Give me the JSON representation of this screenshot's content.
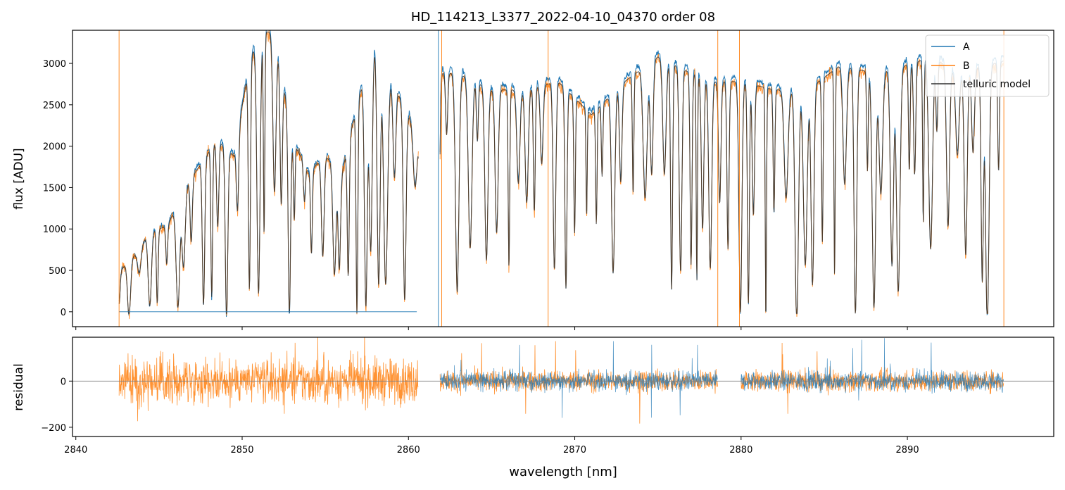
{
  "chart_data": {
    "type": "line",
    "title": "HD_114213_L3377_2022-04-10_04370  order 08",
    "xlabel": "wavelength [nm]",
    "xlim": [
      2839.8,
      2898.8
    ],
    "xticks": [
      2840,
      2850,
      2860,
      2870,
      2880,
      2890
    ],
    "legend_position": "top-right",
    "colors": {
      "A": "#1f77b4",
      "B": "#ff7f0e",
      "model": "#303030",
      "zero_line": "#808080"
    },
    "top_panel": {
      "ylabel": "flux [ADU]",
      "ylim": [
        -180,
        3400
      ],
      "yticks": [
        0,
        500,
        1000,
        1500,
        2000,
        2500,
        3000
      ],
      "series": [
        {
          "name": "A",
          "color": "#1f77b4",
          "segments": [
            [
              2842.6,
              2860.5
            ],
            [
              2861.9,
              2895.8
            ]
          ],
          "note_visible_edges": "vertical spikes at ~2861.8 and ~2895.8"
        },
        {
          "name": "B",
          "color": "#ff7f0e",
          "segments": [
            [
              2842.6,
              2860.6
            ],
            [
              2861.9,
              2895.8
            ]
          ]
        },
        {
          "name": "telluric model",
          "color": "#303030",
          "segments": [
            [
              2842.6,
              2860.6
            ],
            [
              2861.9,
              2895.8
            ]
          ]
        }
      ],
      "profile_knots": {
        "x": [
          2842.6,
          2843.5,
          2844.5,
          2845.5,
          2846.5,
          2847.5,
          2848.5,
          2849.5,
          2850.5,
          2851.2,
          2852,
          2853,
          2854,
          2855,
          2856,
          2857,
          2858,
          2859,
          2860.5,
          2861.9,
          2863,
          2865,
          2867,
          2869,
          2871,
          2873,
          2875,
          2877,
          2878.5,
          2880,
          2882,
          2884,
          2886,
          2888,
          2890,
          2891.5,
          2893,
          2895.8
        ],
        "y": [
          500,
          700,
          1000,
          1050,
          1500,
          1800,
          2100,
          1900,
          3100,
          3400,
          3400,
          2100,
          1700,
          1900,
          1700,
          2600,
          3300,
          2800,
          2200,
          2900,
          2900,
          2700,
          2700,
          2800,
          2400,
          2800,
          3100,
          2900,
          2800,
          2800,
          2700,
          2700,
          3000,
          2900,
          3000,
          3100,
          2900,
          3050
        ]
      }
    },
    "bottom_panel": {
      "ylabel": "residual",
      "ylim": [
        -240,
        190
      ],
      "yticks": [
        -200,
        0
      ],
      "series": [
        {
          "name": "A",
          "color": "#1f77b4",
          "segments": [
            [
              2861.9,
              2878.6
            ],
            [
              2880.0,
              2895.8
            ]
          ]
        },
        {
          "name": "B",
          "color": "#ff7f0e",
          "segments": [
            [
              2842.6,
              2860.6
            ],
            [
              2861.9,
              2878.6
            ],
            [
              2880.0,
              2895.8
            ]
          ]
        }
      ]
    }
  }
}
